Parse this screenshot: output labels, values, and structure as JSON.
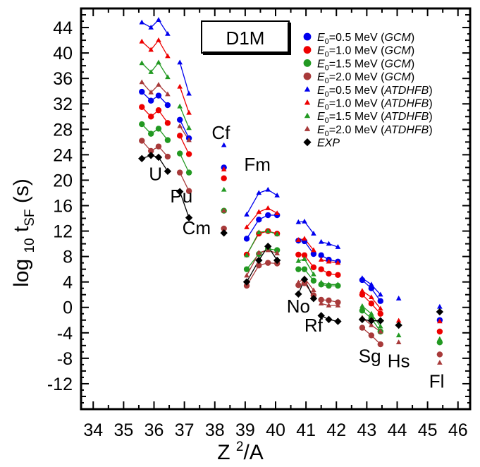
{
  "chart_data": {
    "type": "scatter",
    "title": "D1M",
    "xlabel": "Z ²/A",
    "ylabel": "log 10 t SF (s)",
    "xlabel_parts": {
      "main": "Z ",
      "sup": "2",
      "tail": "/A"
    },
    "ylabel_parts": {
      "main": "log ",
      "sub1": "10",
      "mid": " t",
      "sub2": "SF",
      "tail": " (s)"
    },
    "xlim": [
      33.6,
      46.4
    ],
    "ylim": [
      -16,
      47
    ],
    "x_ticks": [
      34,
      35,
      36,
      37,
      38,
      39,
      40,
      41,
      42,
      43,
      44,
      45,
      46
    ],
    "y_ticks": [
      -12,
      -8,
      -4,
      0,
      4,
      8,
      12,
      16,
      20,
      24,
      28,
      32,
      36,
      40,
      44
    ],
    "legend_position": "top-right",
    "element_labels": [
      {
        "text": "U",
        "x": 36.05,
        "y": 20.0
      },
      {
        "text": "Pu",
        "x": 36.9,
        "y": 16.5
      },
      {
        "text": "Cm",
        "x": 37.4,
        "y": 11.5
      },
      {
        "text": "Cf",
        "x": 38.2,
        "y": 26.5
      },
      {
        "text": "Fm",
        "x": 39.4,
        "y": 21.5
      },
      {
        "text": "No",
        "x": 40.75,
        "y": -0.8
      },
      {
        "text": "Rf",
        "x": 41.25,
        "y": -3.8
      },
      {
        "text": "Sg",
        "x": 43.1,
        "y": -8.6
      },
      {
        "text": "Hs",
        "x": 44.05,
        "y": -9.4
      },
      {
        "text": "Fl",
        "x": 45.3,
        "y": -12.6
      }
    ],
    "series": [
      {
        "name": "E0=0.5 MeV (GCM)",
        "legend": {
          "sym": "E",
          "sub": "0",
          "rest": "=0.5 MeV ",
          "tag": "GCM"
        },
        "marker": "circle",
        "color": "#0000ee",
        "groups": [
          [
            [
              35.6,
              33.9
            ],
            [
              35.9,
              32.5
            ],
            [
              36.15,
              33.3
            ],
            [
              36.45,
              31.8
            ]
          ],
          [
            [
              36.85,
              29.5
            ],
            [
              37.15,
              26.6
            ]
          ],
          [
            [
              38.3,
              22.0
            ]
          ],
          [
            [
              39.05,
              10.8
            ],
            [
              39.45,
              13.8
            ],
            [
              39.75,
              14.5
            ],
            [
              40.05,
              14.5
            ]
          ],
          [
            [
              40.75,
              10.5
            ],
            [
              40.95,
              10.4
            ],
            [
              41.25,
              8.4
            ]
          ],
          [
            [
              41.5,
              8.2
            ],
            [
              41.75,
              7.5
            ],
            [
              42.05,
              7.2
            ]
          ],
          [
            [
              42.85,
              4.3
            ],
            [
              43.15,
              3.0
            ],
            [
              43.45,
              1.0
            ]
          ],
          [
            [
              45.4,
              -2.0
            ]
          ]
        ]
      },
      {
        "name": "E0=1.0 MeV (GCM)",
        "legend": {
          "sym": "E",
          "sub": "0",
          "rest": "=1.0 MeV ",
          "tag": "GCM"
        },
        "marker": "circle",
        "color": "#ee0000",
        "groups": [
          [
            [
              35.6,
              31.5
            ],
            [
              35.9,
              30.0
            ],
            [
              36.15,
              31.0
            ],
            [
              36.45,
              29.0
            ]
          ],
          [
            [
              36.85,
              27.0
            ],
            [
              37.15,
              24.1
            ]
          ],
          [
            [
              38.3,
              20.3
            ]
          ],
          [
            [
              39.05,
              8.3
            ],
            [
              39.45,
              11.6
            ],
            [
              39.75,
              12.0
            ],
            [
              40.05,
              11.6
            ]
          ],
          [
            [
              40.75,
              8.3
            ],
            [
              40.95,
              8.2
            ],
            [
              41.25,
              6.3
            ]
          ],
          [
            [
              41.5,
              6.0
            ],
            [
              41.75,
              5.3
            ],
            [
              42.05,
              5.1
            ]
          ],
          [
            [
              42.85,
              2.0
            ],
            [
              43.15,
              0.6
            ],
            [
              43.45,
              -1.0
            ]
          ],
          [
            [
              45.4,
              -3.8
            ]
          ]
        ]
      },
      {
        "name": "E0=1.5 MeV (GCM)",
        "legend": {
          "sym": "E",
          "sub": "0",
          "rest": "=1.5 MeV ",
          "tag": "GCM"
        },
        "marker": "circle",
        "color": "#229922",
        "groups": [
          [
            [
              35.6,
              28.8
            ],
            [
              35.9,
              27.3
            ],
            [
              36.15,
              28.1
            ],
            [
              36.45,
              26.3
            ]
          ],
          [
            [
              36.85,
              24.2
            ],
            [
              37.15,
              21.2
            ]
          ],
          [
            [
              38.3,
              15.2
            ]
          ],
          [
            [
              39.05,
              6.0
            ],
            [
              39.45,
              8.4
            ],
            [
              39.75,
              9.2
            ],
            [
              40.05,
              9.0
            ]
          ],
          [
            [
              40.75,
              6.0
            ],
            [
              40.95,
              6.0
            ],
            [
              41.25,
              4.2
            ]
          ],
          [
            [
              41.5,
              3.6
            ],
            [
              41.75,
              3.4
            ],
            [
              42.05,
              3.4
            ]
          ],
          [
            [
              42.85,
              -0.5
            ],
            [
              43.15,
              -1.7
            ],
            [
              43.45,
              -3.8
            ]
          ],
          [
            [
              45.4,
              -5.5
            ]
          ]
        ]
      },
      {
        "name": "E0=2.0 MeV (GCM)",
        "legend": {
          "sym": "E",
          "sub": "0",
          "rest": "=2.0 MeV ",
          "tag": "GCM"
        },
        "marker": "circle",
        "color": "#a83a3a",
        "groups": [
          [
            [
              35.6,
              26.2
            ],
            [
              35.9,
              24.6
            ],
            [
              36.15,
              25.3
            ],
            [
              36.45,
              23.7
            ]
          ],
          [
            [
              36.85,
              21.2
            ],
            [
              37.15,
              18.3
            ]
          ],
          [
            [
              38.3,
              12.4
            ]
          ],
          [
            [
              39.05,
              3.4
            ],
            [
              39.45,
              6.6
            ],
            [
              39.75,
              7.0
            ],
            [
              40.05,
              6.9
            ]
          ],
          [
            [
              40.75,
              3.5
            ],
            [
              40.95,
              3.8
            ],
            [
              41.25,
              1.9
            ]
          ],
          [
            [
              41.5,
              1.2
            ],
            [
              41.75,
              1.1
            ],
            [
              42.05,
              0.8
            ]
          ],
          [
            [
              42.85,
              -3.2
            ],
            [
              43.15,
              -4.4
            ],
            [
              43.45,
              -5.8
            ]
          ],
          [
            [
              45.4,
              -7.4
            ]
          ]
        ]
      },
      {
        "name": "E0=0.5 MeV (ATDHFB)",
        "legend": {
          "sym": "E",
          "sub": "0",
          "rest": "=0.5 MeV ",
          "tag": "ATDHFB"
        },
        "marker": "triangle",
        "color": "#0000ee",
        "groups": [
          [
            [
              35.6,
              44.8
            ],
            [
              35.9,
              44.0
            ],
            [
              36.15,
              45.2
            ],
            [
              36.45,
              43.0
            ]
          ],
          [
            [
              36.85,
              38.5
            ],
            [
              37.15,
              33.6
            ]
          ],
          [
            [
              38.3,
              25.5
            ]
          ],
          [
            [
              39.05,
              14.6
            ],
            [
              39.45,
              18.0
            ],
            [
              39.75,
              18.5
            ],
            [
              40.05,
              17.6
            ]
          ],
          [
            [
              40.75,
              13.4
            ],
            [
              40.95,
              13.5
            ],
            [
              41.25,
              11.6
            ]
          ],
          [
            [
              41.5,
              10.3
            ],
            [
              41.75,
              10.0
            ],
            [
              42.05,
              9.5
            ]
          ],
          [
            [
              42.85,
              4.6
            ],
            [
              43.15,
              3.6
            ],
            [
              43.45,
              2.0
            ]
          ],
          [
            [
              44.05,
              1.4
            ]
          ],
          [
            [
              45.4,
              0.1
            ]
          ]
        ]
      },
      {
        "name": "E0=1.0 MeV (ATDHFB)",
        "legend": {
          "sym": "E",
          "sub": "0",
          "rest": "=1.0 MeV ",
          "tag": "ATDHFB"
        },
        "marker": "triangle",
        "color": "#ee0000",
        "groups": [
          [
            [
              35.6,
              41.8
            ],
            [
              35.9,
              40.5
            ],
            [
              36.15,
              42.0
            ],
            [
              36.45,
              39.5
            ]
          ],
          [
            [
              36.85,
              34.7
            ],
            [
              37.15,
              30.6
            ]
          ],
          [
            [
              38.3,
              21.7
            ]
          ],
          [
            [
              39.05,
              12.6
            ],
            [
              39.45,
              15.0
            ],
            [
              39.75,
              15.6
            ],
            [
              40.05,
              14.8
            ]
          ],
          [
            [
              40.75,
              10.6
            ],
            [
              40.95,
              10.8
            ],
            [
              41.25,
              9.0
            ]
          ],
          [
            [
              41.5,
              7.5
            ],
            [
              41.75,
              7.2
            ],
            [
              42.05,
              7.0
            ]
          ],
          [
            [
              42.85,
              2.6
            ],
            [
              43.15,
              1.6
            ],
            [
              43.45,
              -0.2
            ]
          ],
          [
            [
              44.05,
              -2.1
            ]
          ],
          [
            [
              45.4,
              -2.2
            ]
          ]
        ]
      },
      {
        "name": "E0=1.5 MeV (ATDHFB)",
        "legend": {
          "sym": "E",
          "sub": "0",
          "rest": "=1.5 MeV ",
          "tag": "ATDHFB"
        },
        "marker": "triangle",
        "color": "#229922",
        "groups": [
          [
            [
              35.6,
              38.4
            ],
            [
              35.9,
              37.0
            ],
            [
              36.15,
              38.5
            ],
            [
              36.45,
              36.2
            ]
          ],
          [
            [
              36.85,
              31.6
            ],
            [
              37.15,
              28.2
            ]
          ],
          [
            [
              38.3,
              18.5
            ]
          ],
          [
            [
              39.05,
              8.2
            ],
            [
              39.45,
              11.8
            ],
            [
              39.75,
              12.0
            ],
            [
              40.05,
              11.5
            ]
          ],
          [
            [
              40.75,
              7.3
            ],
            [
              40.95,
              7.6
            ],
            [
              41.25,
              5.2
            ]
          ],
          [
            [
              41.5,
              3.9
            ],
            [
              41.75,
              3.6
            ],
            [
              42.05,
              3.6
            ]
          ],
          [
            [
              42.85,
              0.2
            ],
            [
              43.15,
              -1.0
            ],
            [
              43.45,
              -3.0
            ]
          ],
          [
            [
              44.05,
              -4.4
            ]
          ],
          [
            [
              45.4,
              -5.0
            ]
          ]
        ]
      },
      {
        "name": "E0=2.0 MeV (ATDHFB)",
        "legend": {
          "sym": "E",
          "sub": "0",
          "rest": "=2.0 MeV ",
          "tag": "ATDHFB"
        },
        "marker": "triangle",
        "color": "#a83a3a",
        "groups": [
          [
            [
              35.6,
              35.4
            ],
            [
              35.9,
              33.8
            ],
            [
              36.15,
              35.0
            ],
            [
              36.45,
              33.5
            ]
          ],
          [
            [
              36.85,
              28.5
            ],
            [
              37.15,
              26.3
            ]
          ],
          [
            [
              38.3,
              15.2
            ]
          ],
          [
            [
              39.05,
              5.0
            ],
            [
              39.45,
              8.6
            ],
            [
              39.75,
              9.0
            ],
            [
              40.05,
              8.5
            ]
          ],
          [
            [
              40.75,
              3.9
            ],
            [
              40.95,
              4.6
            ],
            [
              41.25,
              2.7
            ]
          ],
          [
            [
              41.5,
              0.6
            ],
            [
              41.75,
              0.3
            ],
            [
              42.05,
              0.3
            ]
          ],
          [
            [
              42.85,
              -1.6
            ],
            [
              43.15,
              -2.8
            ],
            [
              43.45,
              -3.8
            ]
          ],
          [
            [
              44.05,
              -5.5
            ]
          ],
          [
            [
              45.4,
              -8.7
            ]
          ]
        ]
      },
      {
        "name": "EXP",
        "legend": {
          "sym": "",
          "sub": "",
          "rest": "EXP",
          "tag": ""
        },
        "marker": "diamond",
        "color": "#000000",
        "groups": [
          [
            [
              35.6,
              23.4
            ],
            [
              35.9,
              23.9
            ],
            [
              36.15,
              23.6
            ],
            [
              36.45,
              21.4
            ]
          ],
          [
            [
              36.85,
              18.2
            ],
            [
              37.15,
              14.1
            ]
          ],
          [
            [
              38.3,
              11.7
            ]
          ],
          [
            [
              39.05,
              4.0
            ],
            [
              39.45,
              7.4
            ],
            [
              39.75,
              9.6
            ],
            [
              40.05,
              7.4
            ]
          ],
          [
            [
              40.75,
              2.1
            ],
            [
              40.95,
              4.4
            ],
            [
              41.25,
              1.4
            ]
          ],
          [
            [
              41.5,
              -1.3
            ],
            [
              41.75,
              -1.9
            ],
            [
              42.05,
              -2.2
            ]
          ],
          [
            [
              42.85,
              -1.9
            ],
            [
              43.15,
              -2.1
            ],
            [
              43.45,
              -2.1
            ]
          ],
          [
            [
              44.05,
              -2.8
            ]
          ],
          [
            [
              45.4,
              -0.7
            ]
          ]
        ]
      }
    ]
  }
}
